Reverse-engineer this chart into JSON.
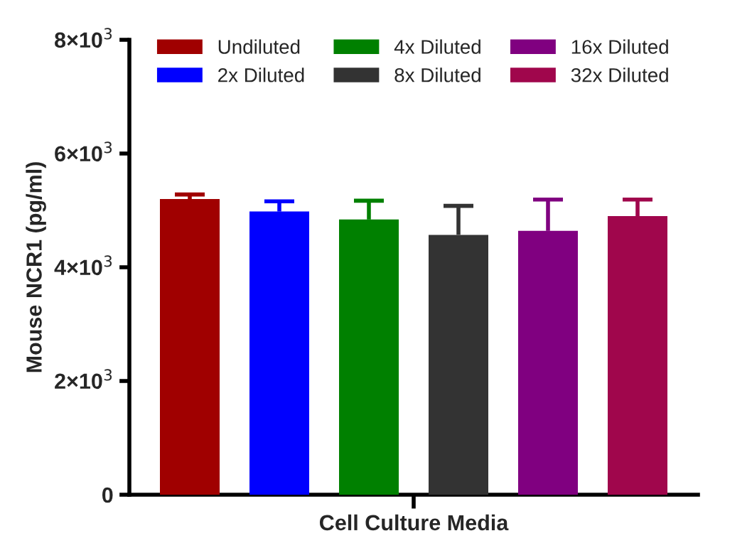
{
  "chart_data": {
    "type": "bar",
    "ylabel": "Mouse NCR1 (pg/ml)",
    "categories": [
      "Cell Culture Media"
    ],
    "series": [
      {
        "name": "Undiluted",
        "color": "#a00000",
        "values": [
          5200
        ],
        "errors": [
          [
            5200,
            5280
          ]
        ]
      },
      {
        "name": "2x Diluted",
        "color": "#0000ff",
        "values": [
          4980
        ],
        "errors": [
          [
            4980,
            5160
          ]
        ]
      },
      {
        "name": "4x Diluted",
        "color": "#008000",
        "values": [
          4840
        ],
        "errors": [
          [
            4840,
            5170
          ]
        ]
      },
      {
        "name": "8x Diluted",
        "color": "#333333",
        "values": [
          4570
        ],
        "errors": [
          [
            4570,
            5080
          ]
        ]
      },
      {
        "name": "16x Diluted",
        "color": "#800080",
        "values": [
          4640
        ],
        "errors": [
          [
            4640,
            5190
          ]
        ]
      },
      {
        "name": "32x Diluted",
        "color": "#a0064c",
        "values": [
          4900
        ],
        "errors": [
          [
            4900,
            5190
          ]
        ]
      }
    ],
    "ylim": [
      0,
      8000
    ],
    "yticks": [
      0,
      {
        "value": 2000,
        "label": "2×10$^{3}$"
      },
      {
        "value": 4000,
        "label": "4×10$^{3}$"
      },
      {
        "value": 6000,
        "label": "6×10$^{3}$"
      },
      {
        "value": 8000,
        "label": "8×10$^{3}$"
      }
    ],
    "grid": false,
    "legend": "top"
  }
}
